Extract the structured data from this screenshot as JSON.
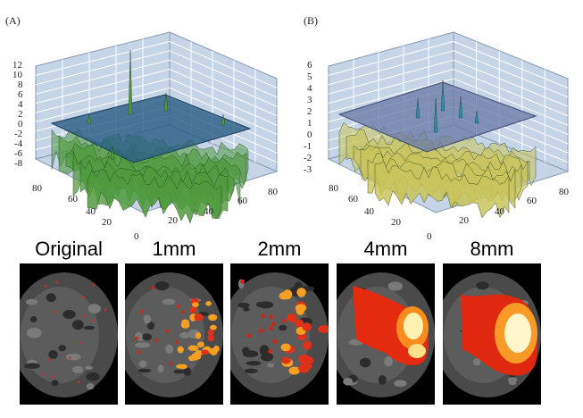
{
  "panels": [
    {
      "label": "(A)",
      "z_ticks": [
        "12",
        "10",
        "8",
        "6",
        "4",
        "2",
        "0",
        "-2",
        "-4",
        "-6",
        "-8"
      ],
      "y_ticks": [
        "80",
        "60",
        "40",
        "20",
        "0"
      ],
      "x_ticks": [
        "20",
        "40",
        "60",
        "80"
      ]
    },
    {
      "label": "(B)",
      "z_ticks": [
        "6",
        "5",
        "4",
        "3",
        "2",
        "1",
        "0",
        "-1",
        "-2",
        "-3"
      ],
      "y_ticks": [
        "80",
        "60",
        "40",
        "20",
        "0"
      ],
      "x_ticks": [
        "20",
        "40",
        "60",
        "80"
      ]
    }
  ],
  "scans": [
    {
      "title": "Original"
    },
    {
      "title": "1mm"
    },
    {
      "title": "2mm"
    },
    {
      "title": "4mm"
    },
    {
      "title": "8mm"
    }
  ],
  "colors": {
    "wall": "#c6d4e8",
    "grid": "#ffffff",
    "surface_a": "#4f9a3c",
    "surface_b": "#c9c45a",
    "plane_a": "#2b5e84",
    "plane_b": "#6a7aa6",
    "hot": "#ffcc33"
  }
}
